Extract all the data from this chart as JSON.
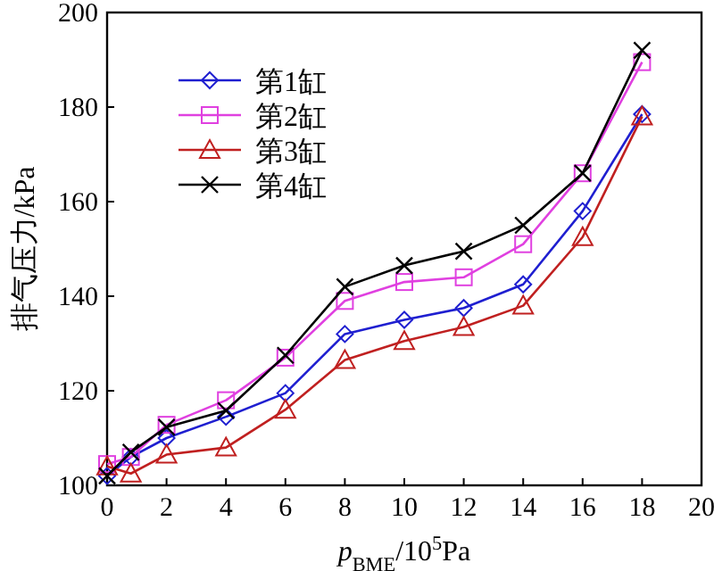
{
  "chart_data": {
    "type": "line",
    "xlabel": "p$_{BME}$/10$^{5}$Pa",
    "ylabel": "排气压力/kPa",
    "x": [
      0,
      0.8,
      2,
      4,
      6,
      8,
      10,
      12,
      14,
      16,
      18
    ],
    "xlim": [
      0,
      20
    ],
    "xticks": [
      0,
      2,
      4,
      6,
      8,
      10,
      12,
      14,
      16,
      18,
      20
    ],
    "ylim": [
      100,
      200
    ],
    "yticks": [
      100,
      120,
      140,
      160,
      180,
      200
    ],
    "legend": "top left",
    "grid": false,
    "series": [
      {
        "name": "第1缸",
        "color": "#1f1fd0",
        "marker": "diamond",
        "values": [
          102,
          106,
          110,
          114.5,
          119.5,
          132,
          135,
          137.5,
          142.5,
          158,
          178.5
        ]
      },
      {
        "name": "第2缸",
        "color": "#e040e0",
        "marker": "square",
        "values": [
          104.5,
          106,
          112.8,
          118,
          127,
          139,
          143,
          144,
          151,
          166,
          189.5
        ]
      },
      {
        "name": "第3缸",
        "color": "#c02020",
        "marker": "triangle",
        "values": [
          104,
          102.5,
          106.5,
          108,
          116,
          126.5,
          130.5,
          133.5,
          138,
          152.5,
          178
        ]
      },
      {
        "name": "第4缸",
        "color": "#000000",
        "marker": "cross",
        "values": [
          102,
          107,
          112.3,
          115.8,
          127.5,
          142,
          146.5,
          149.5,
          155,
          166,
          192
        ]
      }
    ]
  }
}
